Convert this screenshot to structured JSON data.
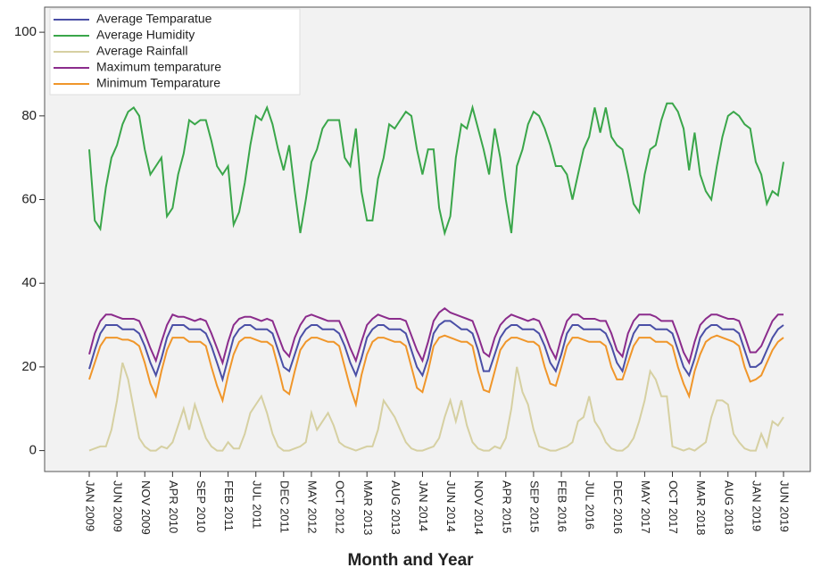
{
  "chart_data": {
    "type": "line",
    "xlabel": "Month and Year",
    "categories": [
      "JAN 2009",
      null,
      null,
      null,
      null,
      "JUN 2009",
      null,
      null,
      null,
      null,
      "NOV 2009",
      null,
      null,
      null,
      null,
      "APR 2010",
      null,
      null,
      null,
      null,
      "SEP 2010",
      null,
      null,
      null,
      null,
      "FEB 2011",
      null,
      null,
      null,
      null,
      "JUL 2011",
      null,
      null,
      null,
      null,
      "DEC 2011",
      null,
      null,
      null,
      null,
      "MAY 2012",
      null,
      null,
      null,
      null,
      "OCT 2012",
      null,
      null,
      null,
      null,
      "MAR 2013",
      null,
      null,
      null,
      null,
      "AUG 2013",
      null,
      null,
      null,
      null,
      "JAN 2014",
      null,
      null,
      null,
      null,
      "JUN 2014",
      null,
      null,
      null,
      null,
      "NOV 2014",
      null,
      null,
      null,
      null,
      "APR 2015",
      null,
      null,
      null,
      null,
      "SEP 2015",
      null,
      null,
      null,
      null,
      "FEB 2016",
      null,
      null,
      null,
      null,
      "JUL 2016",
      null,
      null,
      null,
      null,
      "DEC 2016",
      null,
      null,
      null,
      null,
      "MAY 2017",
      null,
      null,
      null,
      null,
      "OCT 2017",
      null,
      null,
      null,
      null,
      "MAR 2018",
      null,
      null,
      null,
      null,
      "AUG 2018",
      null,
      null,
      null,
      null,
      "JAN 2019",
      null,
      null,
      null,
      null,
      "JUN 2019"
    ],
    "series": [
      {
        "name": "Average Temparatue",
        "color": "#4a4fa6",
        "values": [
          19.5,
          24,
          28,
          30,
          30,
          30,
          29,
          29,
          29,
          28,
          25,
          21,
          18,
          22,
          27,
          30,
          30,
          30,
          29,
          29,
          29,
          28,
          25,
          21,
          17,
          22,
          27,
          29,
          30,
          30,
          29,
          29,
          29,
          28,
          24,
          20,
          19,
          23,
          27,
          29,
          30,
          30,
          29,
          29,
          29,
          28,
          25,
          21,
          18,
          22,
          27,
          29,
          30,
          30,
          29,
          29,
          29,
          28,
          24,
          20,
          18,
          22,
          28,
          30,
          31,
          31,
          30,
          29,
          29,
          28,
          24,
          19,
          19,
          23,
          27,
          29,
          30,
          30,
          29,
          29,
          29,
          28,
          25,
          21,
          19,
          23,
          28,
          30,
          30,
          29,
          29,
          29,
          29,
          28,
          25,
          21,
          19,
          24,
          28,
          30,
          30,
          30,
          29,
          29,
          29,
          28,
          24,
          20,
          18,
          22,
          27,
          29,
          30,
          30,
          29,
          29,
          29,
          28,
          24,
          20,
          20,
          21,
          24,
          27,
          29,
          30
        ]
      },
      {
        "name": "Average Humidity",
        "color": "#3aa64a",
        "values": [
          72,
          55,
          53,
          63,
          70,
          73,
          78,
          81,
          82,
          80,
          72,
          66,
          68,
          70,
          56,
          58,
          66,
          71,
          79,
          78,
          79,
          79,
          74,
          68,
          66,
          68,
          54,
          57,
          64,
          73,
          80,
          79,
          82,
          78,
          72,
          67,
          73,
          62,
          52,
          60,
          69,
          72,
          77,
          79,
          79,
          79,
          70,
          68,
          77,
          62,
          55,
          55,
          65,
          70,
          78,
          77,
          79,
          81,
          80,
          72,
          66,
          72,
          72,
          58,
          52,
          56,
          70,
          78,
          77,
          82,
          77,
          72,
          66,
          77,
          70,
          60,
          52,
          68,
          72,
          78,
          81,
          80,
          77,
          73,
          68,
          68,
          66,
          60,
          66,
          72,
          75,
          82,
          76,
          82,
          75,
          73,
          72,
          66,
          59,
          57,
          66,
          72,
          73,
          79,
          83,
          83,
          81,
          77,
          67,
          76,
          66,
          62,
          60,
          68,
          75,
          80,
          81,
          80,
          78,
          77,
          69,
          66,
          59,
          62,
          61,
          69
        ]
      },
      {
        "name": "Average Rainfall",
        "color": "#d6d0a2",
        "values": [
          0,
          0.5,
          1,
          1,
          5,
          12,
          21,
          17,
          10,
          3,
          1,
          0,
          0,
          1,
          0.5,
          2,
          6,
          10,
          5,
          11,
          7,
          3,
          1,
          0,
          0,
          2,
          0.5,
          0.5,
          4,
          9,
          11,
          13,
          9,
          4,
          1,
          0,
          0,
          0.5,
          1,
          2,
          9,
          5,
          7,
          9,
          6,
          2,
          1,
          0.5,
          0,
          0.5,
          1,
          1,
          5,
          12,
          10,
          8,
          5,
          2,
          0.5,
          0,
          0,
          0.5,
          1,
          3,
          8,
          12,
          7,
          12,
          6,
          2,
          0.5,
          0,
          0,
          1,
          0.5,
          3,
          10,
          20,
          14,
          11,
          5,
          1,
          0.5,
          0,
          0,
          0.5,
          1,
          2,
          7,
          8,
          13,
          7,
          5,
          2,
          0.5,
          0,
          0,
          1,
          3,
          7,
          12,
          19,
          17,
          13,
          13,
          1,
          0.5,
          0,
          0.5,
          0,
          1,
          2,
          8,
          12,
          12,
          11,
          4,
          2,
          0.5,
          0,
          0,
          4,
          1,
          7,
          6,
          8
        ]
      },
      {
        "name": "Maximum temparature",
        "color": "#8b2c8c",
        "values": [
          23,
          28,
          31,
          32.5,
          32.5,
          32,
          31.5,
          31.5,
          31.5,
          31,
          28,
          24.5,
          21.5,
          26,
          30,
          32.5,
          32,
          32,
          31.5,
          31,
          31.5,
          31,
          28,
          24.5,
          21,
          26,
          30,
          31.5,
          32,
          32,
          31.5,
          31,
          31.5,
          31,
          27.5,
          24,
          22.5,
          27,
          30,
          32,
          32.5,
          32,
          31.5,
          31,
          31,
          31,
          28,
          24.5,
          21.5,
          26,
          30,
          31.5,
          32.5,
          32,
          31.5,
          31.5,
          31.5,
          31,
          27.5,
          24,
          21.5,
          26,
          31,
          33,
          34,
          33,
          32.5,
          32,
          31.5,
          31,
          27.5,
          23.5,
          22.5,
          27,
          30,
          31.5,
          32.5,
          32,
          31.5,
          31,
          31.5,
          31,
          28,
          24.5,
          22,
          27,
          31,
          32.5,
          32.5,
          31.5,
          31.5,
          31.5,
          31,
          31,
          28,
          24,
          22.5,
          28,
          31,
          32.5,
          32.5,
          32.5,
          32,
          31,
          31,
          31,
          27.5,
          23.5,
          21,
          26,
          30,
          31.5,
          32.5,
          32.5,
          32,
          31.5,
          31.5,
          31,
          27.5,
          23.5,
          23.5,
          25,
          28,
          31,
          32.5,
          32.5
        ]
      },
      {
        "name": "Minimum Temparature",
        "color": "#f0962a",
        "values": [
          17,
          21,
          25,
          27,
          27,
          27,
          26.5,
          26.5,
          26,
          25,
          21,
          16,
          13,
          19,
          24,
          27,
          27,
          27,
          26,
          26,
          26,
          25,
          20,
          15.5,
          12,
          18,
          23,
          26,
          27,
          27,
          26.5,
          26,
          26,
          25,
          20,
          14.5,
          13.5,
          19,
          24,
          26,
          27,
          27,
          26.5,
          26,
          26,
          25,
          20,
          15,
          11,
          18,
          23,
          26,
          27,
          27,
          26.5,
          26,
          26,
          25,
          20,
          15,
          14,
          19,
          25,
          27,
          27.5,
          27,
          26.5,
          26,
          26,
          25,
          19,
          14.5,
          14,
          19,
          24,
          26,
          27,
          27,
          26.5,
          26,
          26,
          25,
          20,
          16,
          15.5,
          20,
          25,
          27,
          27,
          26.5,
          26,
          26,
          26,
          25,
          20,
          17,
          17,
          21,
          25,
          27,
          27,
          27,
          26,
          26,
          26,
          25,
          20,
          16,
          13,
          19,
          23,
          26,
          27,
          27.5,
          27,
          26.5,
          26,
          25,
          20,
          16.5,
          17,
          18,
          21,
          24,
          26,
          27
        ]
      }
    ],
    "ylim": [
      -5,
      106
    ],
    "yticks": [
      0,
      20,
      40,
      60,
      80,
      100
    ],
    "legend": "upper left"
  }
}
